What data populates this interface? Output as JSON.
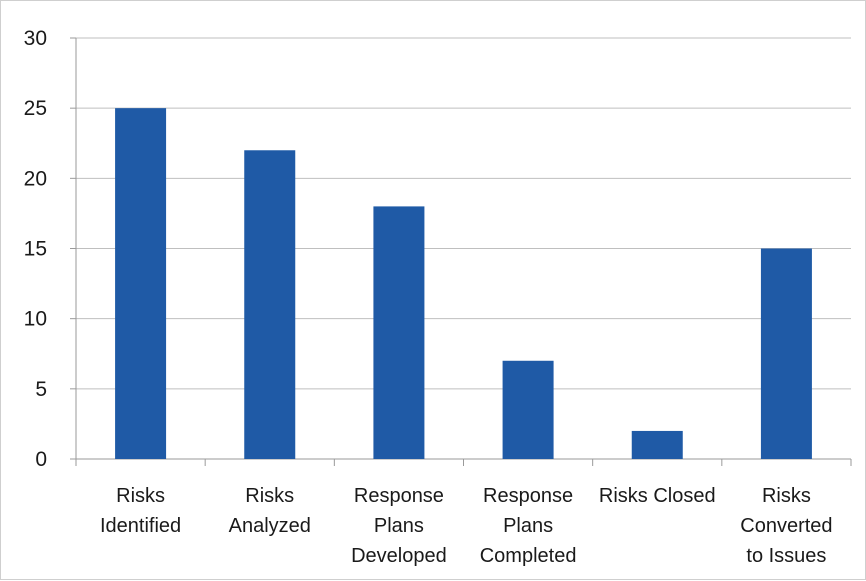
{
  "chart_data": {
    "type": "bar",
    "title": "",
    "xlabel": "",
    "ylabel": "",
    "categories": [
      [
        "Risks",
        "Identified"
      ],
      [
        "Risks",
        "Analyzed"
      ],
      [
        "Response",
        "Plans",
        "Developed"
      ],
      [
        "Response",
        "Plans",
        "Completed"
      ],
      [
        "Risks Closed"
      ],
      [
        "Risks",
        "Converted",
        "to Issues"
      ]
    ],
    "values": [
      25,
      22,
      18,
      7,
      2,
      15
    ],
    "ylim": [
      0,
      30
    ],
    "yticks": [
      0,
      5,
      10,
      15,
      20,
      25,
      30
    ],
    "grid": true,
    "legend": "none",
    "colors": {
      "bar": "#1f5aa6",
      "grid": "#bfbfbf",
      "axis": "#9a9a9a"
    }
  }
}
